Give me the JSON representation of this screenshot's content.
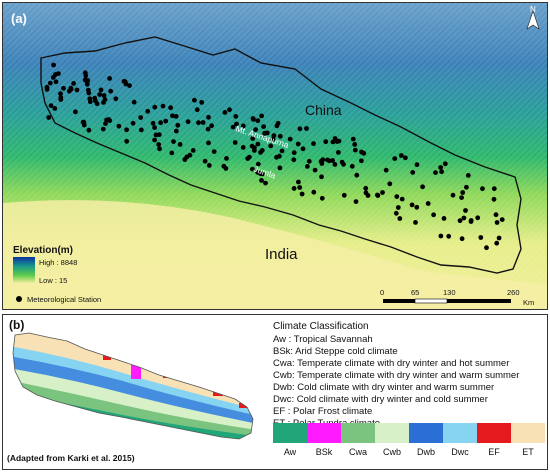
{
  "panel_a": {
    "label": "(a)",
    "country_label_china": "China",
    "country_label_india": "India",
    "place_annapurna": "Mt. Annapurna",
    "place_jumla": "Jumla",
    "north_label": "N",
    "legend_title": "Elevation(m)",
    "legend_high": "High : 8848",
    "legend_low": "Low : 15",
    "station_label": "Meteorological Station",
    "scale_ticks": [
      "0",
      "65",
      "130",
      "260"
    ],
    "scale_unit": "Km"
  },
  "panel_b": {
    "label": "(b)",
    "credit": "(Adapted from Karki et al. 2015)",
    "legend_title": "Climate Classification",
    "classes": [
      {
        "code": "Aw",
        "description": "Aw   : Tropical Savannah",
        "color": "#21a67a"
      },
      {
        "code": "BSk",
        "description": "BSk: Arid Steppe cold climate",
        "color": "#ff1aff"
      },
      {
        "code": "Cwa",
        "description": "Cwa: Temperate climate with dry winter and hot summer",
        "color": "#7bc47f"
      },
      {
        "code": "Cwb",
        "description": "Cwb: Temperate climate with dry winter and warm summer",
        "color": "#d8f0c8"
      },
      {
        "code": "Dwb",
        "description": "Dwb: Cold climate with dry winter and warm summer",
        "color": "#2a6fd6"
      },
      {
        "code": "Dwc",
        "description": "Dwc: Cold climate with dry winter and cold summer",
        "color": "#86d3f2"
      },
      {
        "code": "EF",
        "description": "EF   : Polar Frost climate",
        "color": "#e41a1c"
      },
      {
        "code": "ET",
        "description": "ET   : Polar Tundra climate",
        "color": "#f7e1b5"
      }
    ]
  }
}
